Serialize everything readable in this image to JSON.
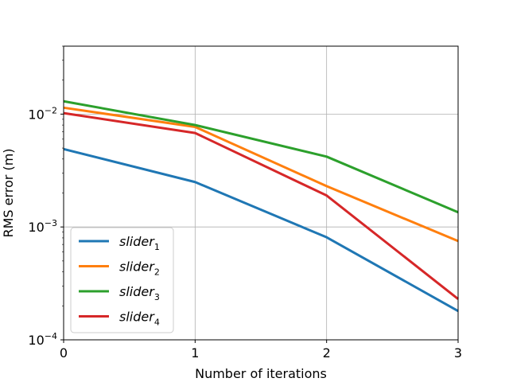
{
  "chart_data": {
    "type": "line",
    "title": "",
    "xlabel": "Number of iterations",
    "ylabel": "RMS error (m)",
    "x": [
      0,
      1,
      2,
      3
    ],
    "xlim": [
      0,
      3
    ],
    "ylim": [
      0.0001,
      0.04
    ],
    "yscale": "log",
    "grid": true,
    "legend_placement": "lower-left",
    "xticks": [
      "0",
      "1",
      "2",
      "3"
    ],
    "yticks": [
      {
        "value": 0.0001,
        "base": "10",
        "exp": "−4"
      },
      {
        "value": 0.001,
        "base": "10",
        "exp": "−3"
      },
      {
        "value": 0.01,
        "base": "10",
        "exp": "−2"
      }
    ],
    "series": [
      {
        "name": "slider",
        "sub": "1",
        "color": "#1f77b4",
        "values": [
          0.0049,
          0.0025,
          0.00081,
          0.00018
        ]
      },
      {
        "name": "slider",
        "sub": "2",
        "color": "#ff7f0e",
        "values": [
          0.0114,
          0.0077,
          0.0023,
          0.00075
        ]
      },
      {
        "name": "slider",
        "sub": "3",
        "color": "#2ca02c",
        "values": [
          0.013,
          0.008,
          0.0042,
          0.00135
        ]
      },
      {
        "name": "slider",
        "sub": "4",
        "color": "#d62728",
        "values": [
          0.0102,
          0.0068,
          0.0019,
          0.00023
        ]
      }
    ]
  }
}
